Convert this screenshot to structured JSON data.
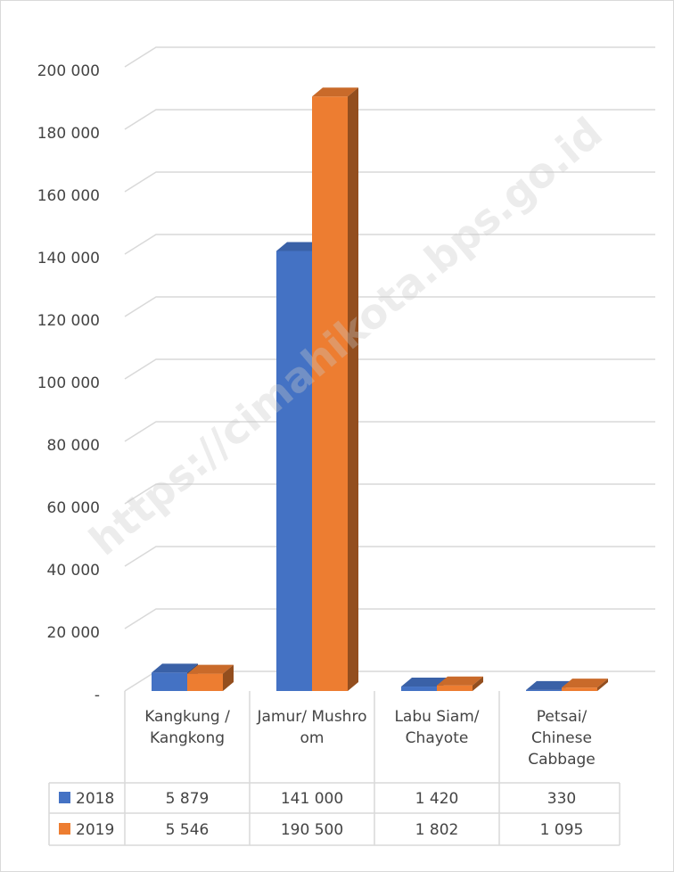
{
  "chart_data": {
    "type": "bar3d",
    "watermark": "https://cimahikota.bps.go.id",
    "categories": [
      "Kangkung / Kangkong",
      "Jamur/ Mushroom",
      "Labu Siam/ Chayote",
      "Petsai/ Chinese Cabbage"
    ],
    "series": [
      {
        "name": "2018",
        "color": "#4472c4",
        "values": [
          5879,
          141000,
          1420,
          330
        ],
        "value_labels": [
          "5 879",
          "141 000",
          "1 420",
          "330"
        ]
      },
      {
        "name": "2019",
        "color": "#ed7d31",
        "values": [
          5546,
          190500,
          1802,
          1095
        ],
        "value_labels": [
          "5 546",
          "190 500",
          "1 802",
          "1 095"
        ]
      }
    ],
    "ylim": [
      0,
      200000
    ],
    "yticks": [
      {
        "value": 0,
        "label": "-"
      },
      {
        "value": 20000,
        "label": "20 000"
      },
      {
        "value": 40000,
        "label": "40 000"
      },
      {
        "value": 60000,
        "label": "60 000"
      },
      {
        "value": 80000,
        "label": "80 000"
      },
      {
        "value": 100000,
        "label": "100 000"
      },
      {
        "value": 120000,
        "label": "120 000"
      },
      {
        "value": 140000,
        "label": "140 000"
      },
      {
        "value": 160000,
        "label": "160 000"
      },
      {
        "value": 180000,
        "label": "180 000"
      },
      {
        "value": 200000,
        "label": "200 000"
      }
    ],
    "grid": true
  }
}
